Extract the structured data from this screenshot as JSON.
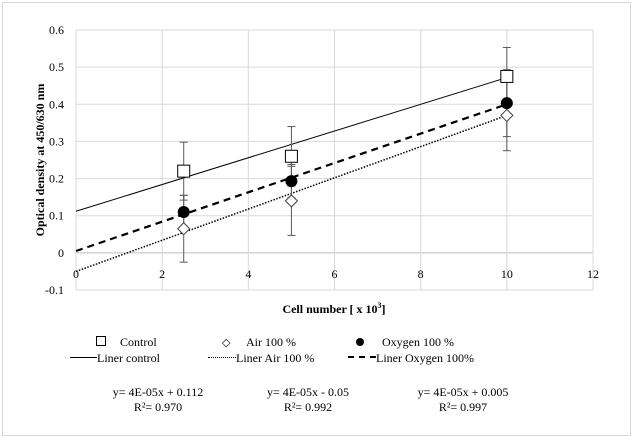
{
  "chart_data": {
    "type": "scatter",
    "title": "",
    "xlabel": "Cell number [ x 10",
    "xlabel_sup": "3",
    "xlabel_end": "]",
    "ylabel": "Optical density at 450/630 nm",
    "xlim": [
      0,
      12
    ],
    "ylim": [
      -0.1,
      0.6
    ],
    "xticks": [
      0,
      2,
      4,
      6,
      8,
      10,
      12
    ],
    "yticks": [
      -0.1,
      0,
      0.1,
      0.2,
      0.3,
      0.4,
      0.5,
      0.6
    ],
    "xtick_labels": [
      "0",
      "2",
      "4",
      "6",
      "8",
      "10",
      "12"
    ],
    "ytick_labels": [
      "-0.1",
      "0",
      "0.1",
      "0.2",
      "0.3",
      "0.4",
      "0.5",
      "0.6"
    ],
    "grid": true,
    "legend_position": "bottom",
    "series": [
      {
        "name": "Control",
        "marker": "square-open",
        "x": [
          2.5,
          5,
          10
        ],
        "y": [
          0.22,
          0.26,
          0.475
        ],
        "error": [
          0.078,
          0.08,
          0.078
        ],
        "trend": {
          "name": "Liner control",
          "style": "solid",
          "slope": 0.036,
          "intercept": 0.112,
          "equation": "y= 4E-05x + 0.112",
          "r2": "R²= 0.970"
        }
      },
      {
        "name": "Air 100 %",
        "marker": "diamond-open",
        "x": [
          2.5,
          5,
          10
        ],
        "y": [
          0.065,
          0.14,
          0.37
        ],
        "error": [
          0.09,
          0.093,
          0.095
        ],
        "trend": {
          "name": "Liner Air 100 %",
          "style": "dotted",
          "slope": 0.042,
          "intercept": -0.05,
          "equation": "y= 4E-05x - 0.05",
          "r2": "R²= 0.992"
        }
      },
      {
        "name": "Oxygen 100 %",
        "marker": "circle-filled",
        "x": [
          2.5,
          5,
          10
        ],
        "y": [
          0.11,
          0.193,
          0.403
        ],
        "error": [
          0.045,
          0.045,
          0.09
        ],
        "trend": {
          "name": "Liner Oxygen 100%",
          "style": "dashed",
          "slope": 0.0395,
          "intercept": 0.005,
          "equation": "y= 4E-05x + 0.005",
          "r2": "R²= 0.997"
        }
      }
    ]
  },
  "legend": {
    "markers": [
      "Control",
      "Air 100 %",
      "Oxygen 100 %"
    ],
    "lines": [
      "Liner control",
      "Liner Air 100 %",
      "Liner Oxygen 100%"
    ]
  },
  "equations": [
    {
      "eq": "y= 4E-05x + 0.112",
      "r2": "R²= 0.970"
    },
    {
      "eq": "y= 4E-05x - 0.05",
      "r2": "R²= 0.992"
    },
    {
      "eq": "y= 4E-05x + 0.005",
      "r2": "R²= 0.997"
    }
  ]
}
